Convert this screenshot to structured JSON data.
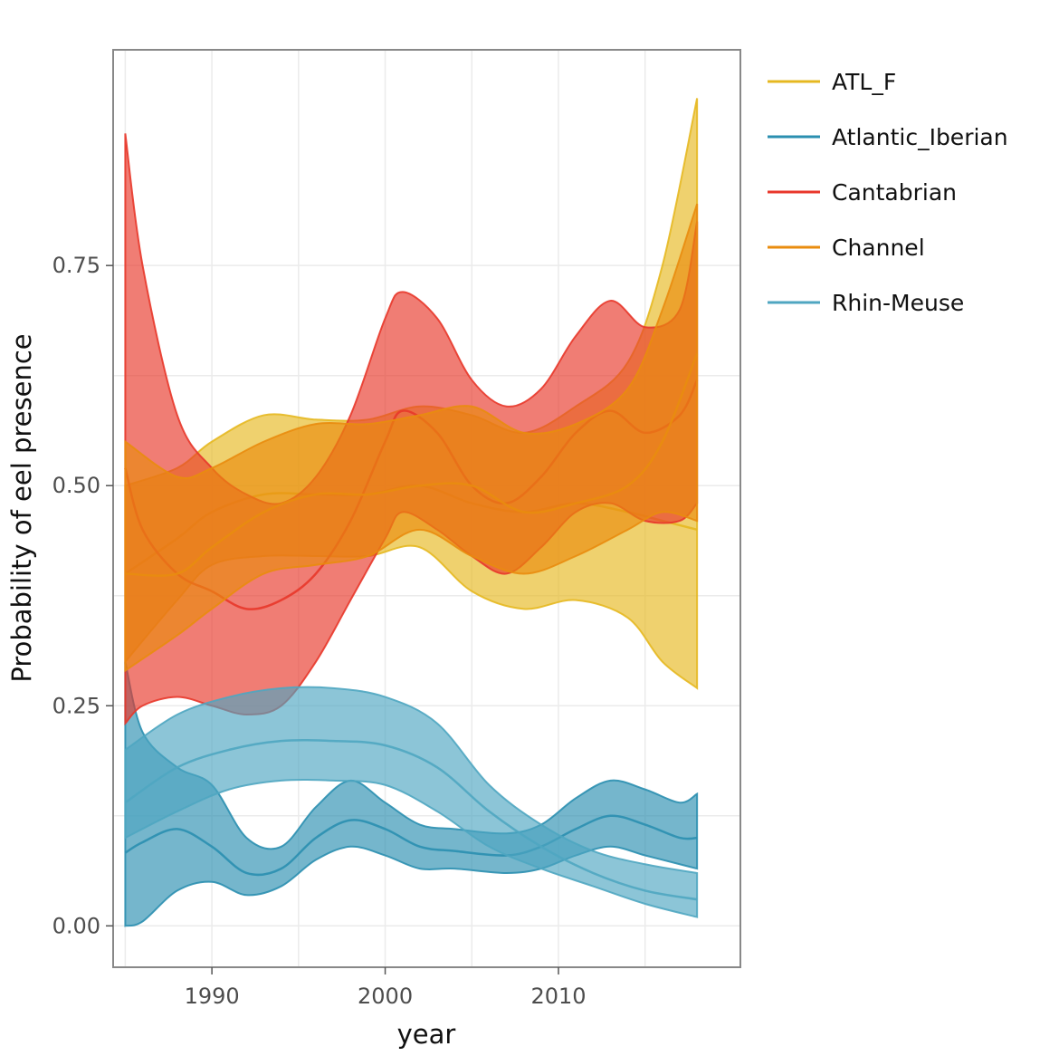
{
  "chart_data": {
    "type": "area",
    "title": "",
    "xlabel": "year",
    "ylabel": "Probability of eel presence",
    "xlim": [
      1984.3,
      2020.5
    ],
    "ylim": [
      -0.047,
      0.995
    ],
    "x_ticks": [
      1990,
      2000,
      2010
    ],
    "y_ticks": [
      0.0,
      0.25,
      0.5,
      0.75
    ],
    "y_tick_labels": [
      "0.00",
      "0.25",
      "0.50",
      "0.75"
    ],
    "grid": true,
    "legend_position": "right",
    "series": [
      {
        "name": "ATL_F",
        "color": "#e6b820",
        "x": [
          1985,
          1988,
          1990,
          1993,
          1996,
          1999,
          2002,
          2005,
          2008,
          2011,
          2014,
          2016,
          2018
        ],
        "y": [
          0.4,
          0.44,
          0.47,
          0.49,
          0.49,
          0.49,
          0.5,
          0.48,
          0.47,
          0.48,
          0.47,
          0.46,
          0.45
        ],
        "lower": [
          0.3,
          0.37,
          0.41,
          0.42,
          0.42,
          0.42,
          0.43,
          0.38,
          0.36,
          0.37,
          0.35,
          0.3,
          0.27
        ],
        "upper": [
          0.5,
          0.52,
          0.55,
          0.58,
          0.575,
          0.575,
          0.59,
          0.58,
          0.56,
          0.59,
          0.64,
          0.75,
          0.94
        ]
      },
      {
        "name": "Atlantic_Iberian",
        "color": "#2b8fb0",
        "x": [
          1985,
          1986,
          1988,
          1990,
          1992,
          1994,
          1996,
          1998,
          2000,
          2002,
          2004,
          2007,
          2009,
          2011,
          2013,
          2015,
          2017,
          2018
        ],
        "y": [
          0.083,
          0.095,
          0.11,
          0.09,
          0.06,
          0.065,
          0.1,
          0.12,
          0.11,
          0.09,
          0.085,
          0.08,
          0.09,
          0.11,
          0.125,
          0.115,
          0.1,
          0.1
        ],
        "lower": [
          0.0,
          0.005,
          0.04,
          0.05,
          0.035,
          0.045,
          0.075,
          0.09,
          0.08,
          0.065,
          0.065,
          0.06,
          0.065,
          0.08,
          0.09,
          0.08,
          0.07,
          0.065
        ],
        "upper": [
          0.3,
          0.22,
          0.18,
          0.16,
          0.1,
          0.09,
          0.135,
          0.165,
          0.14,
          0.115,
          0.11,
          0.105,
          0.115,
          0.145,
          0.165,
          0.155,
          0.14,
          0.15
        ]
      },
      {
        "name": "Cantabrian",
        "color": "#e8372a",
        "x": [
          1985,
          1986,
          1988,
          1990,
          1992,
          1994,
          1996,
          1998,
          2000,
          2001,
          2003,
          2005,
          2007,
          2009,
          2011,
          2013,
          2015,
          2017,
          2018
        ],
        "y": [
          0.52,
          0.45,
          0.4,
          0.38,
          0.36,
          0.37,
          0.4,
          0.46,
          0.55,
          0.585,
          0.56,
          0.5,
          0.48,
          0.51,
          0.56,
          0.585,
          0.56,
          0.58,
          0.62
        ],
        "lower": [
          0.23,
          0.25,
          0.26,
          0.25,
          0.24,
          0.25,
          0.3,
          0.37,
          0.44,
          0.47,
          0.45,
          0.42,
          0.4,
          0.43,
          0.47,
          0.48,
          0.46,
          0.46,
          0.48
        ],
        "upper": [
          0.9,
          0.75,
          0.58,
          0.52,
          0.49,
          0.48,
          0.51,
          0.58,
          0.69,
          0.72,
          0.69,
          0.62,
          0.59,
          0.61,
          0.67,
          0.71,
          0.68,
          0.7,
          0.8
        ]
      },
      {
        "name": "Channel",
        "color": "#e98c0e",
        "x": [
          1985,
          1988,
          1990,
          1993,
          1996,
          1999,
          2002,
          2005,
          2008,
          2011,
          2014,
          2016,
          2018
        ],
        "y": [
          0.4,
          0.4,
          0.43,
          0.47,
          0.49,
          0.49,
          0.5,
          0.5,
          0.47,
          0.48,
          0.5,
          0.55,
          0.65
        ],
        "lower": [
          0.29,
          0.33,
          0.36,
          0.4,
          0.41,
          0.42,
          0.45,
          0.42,
          0.4,
          0.42,
          0.45,
          0.47,
          0.46
        ],
        "upper": [
          0.55,
          0.51,
          0.52,
          0.55,
          0.57,
          0.57,
          0.58,
          0.59,
          0.56,
          0.57,
          0.61,
          0.7,
          0.82
        ]
      },
      {
        "name": "Rhin-Meuse",
        "color": "#4fa6c1",
        "x": [
          1985,
          1988,
          1991,
          1994,
          1997,
          2000,
          2003,
          2006,
          2009,
          2012,
          2015,
          2018
        ],
        "y": [
          0.14,
          0.18,
          0.2,
          0.21,
          0.21,
          0.205,
          0.18,
          0.13,
          0.09,
          0.06,
          0.04,
          0.03
        ],
        "lower": [
          0.1,
          0.13,
          0.155,
          0.165,
          0.165,
          0.16,
          0.13,
          0.09,
          0.065,
          0.045,
          0.025,
          0.01
        ],
        "upper": [
          0.2,
          0.24,
          0.26,
          0.27,
          0.27,
          0.26,
          0.23,
          0.16,
          0.115,
          0.085,
          0.07,
          0.06
        ]
      }
    ]
  }
}
